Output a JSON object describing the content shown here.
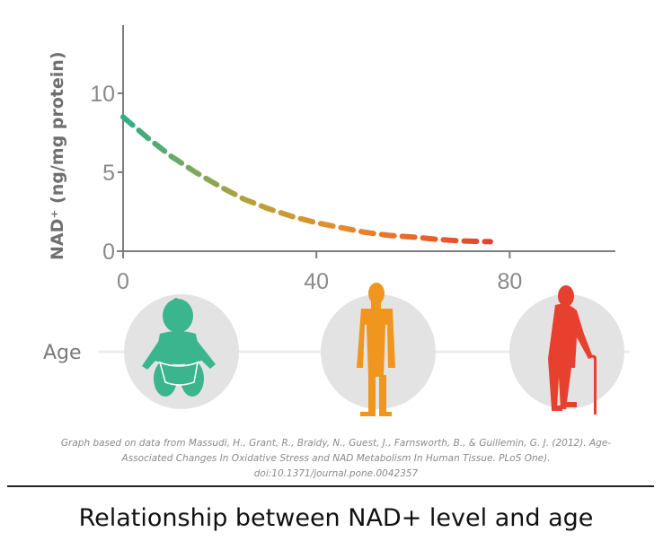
{
  "chart_data": {
    "type": "line",
    "xlabel": "Age",
    "ylabel": "NAD⁺ (ng/mg protein)",
    "xlim": [
      0,
      100
    ],
    "ylim": [
      0,
      14
    ],
    "x_ticks": [
      "0",
      "40",
      "80"
    ],
    "y_ticks": [
      "0",
      "5",
      "10"
    ],
    "grid": false,
    "line_style": "dashed, gradient green to red",
    "series": [
      {
        "x": [
          0,
          5,
          10,
          15,
          20,
          25,
          30,
          35,
          40,
          45,
          50,
          55,
          60,
          65,
          70,
          76
        ],
        "y": [
          8.5,
          7.2,
          6.0,
          5.0,
          4.1,
          3.3,
          2.7,
          2.2,
          1.8,
          1.5,
          1.2,
          1.0,
          0.9,
          0.75,
          0.65,
          0.6
        ]
      }
    ],
    "age_icons": [
      {
        "name": "baby-icon",
        "color": "#3bb58e"
      },
      {
        "name": "adult-icon",
        "color": "#f0961e"
      },
      {
        "name": "elderly-with-cane-icon",
        "color": "#e8402f"
      }
    ]
  },
  "citation": {
    "line1": "Graph based on data from Massudi, H., Grant, R., Braidy, N., Guest, J., Farnsworth, B., & Guillemin, G. J. (2012). Age-",
    "line2": "Associated Changes In Oxidative Stress and NAD Metabolism In Human Tissue. PLoS One).",
    "line3": "doi:10.1371/journal.pone.0042357"
  },
  "caption": "Relationship between NAD+ level and age"
}
